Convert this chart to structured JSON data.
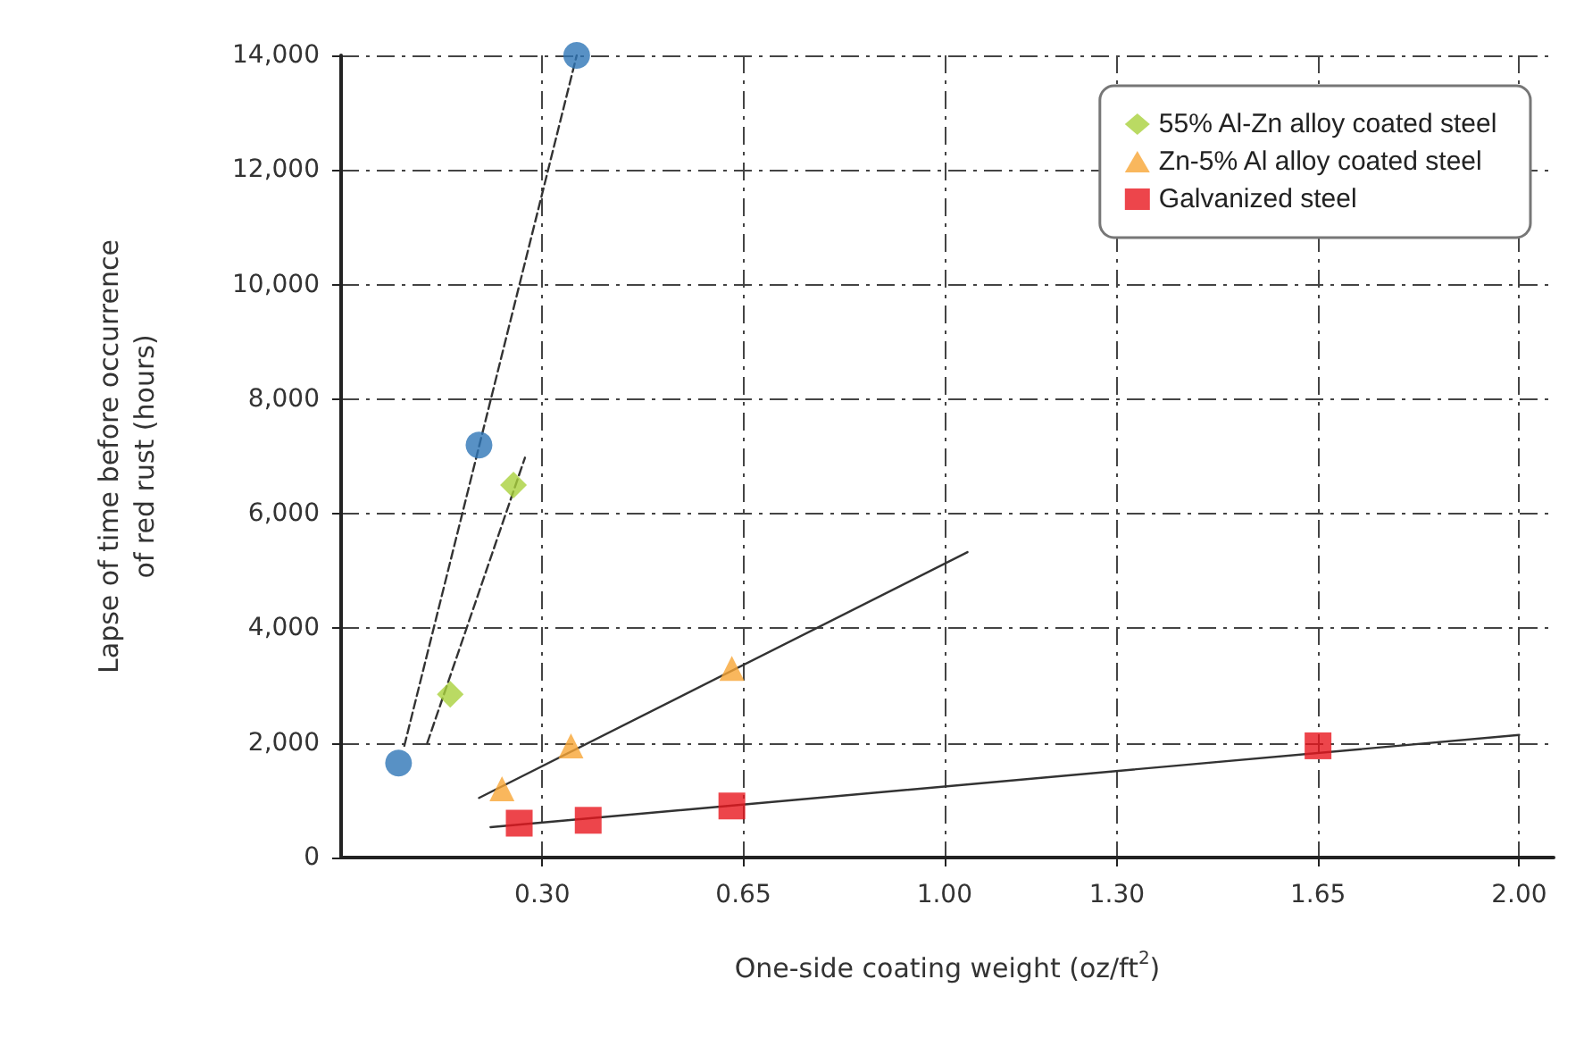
{
  "chart_data": {
    "type": "scatter",
    "xlabel": "One-side coating weight (oz/ft$^{2}$)",
    "ylabel": "Lapse of time before occurrence\nof red rust (hours)",
    "xlim": [
      -0.05,
      2.06
    ],
    "xticks": [
      {
        "value": 0.3,
        "label": "0.30"
      },
      0.65,
      {
        "value": 1.0,
        "label": "1.00"
      },
      {
        "value": 1.3,
        "label": "1.30"
      },
      1.65,
      {
        "value": 2.0,
        "label": "2.00"
      }
    ],
    "ylim": [
      0,
      14000
    ],
    "yticks": [
      0,
      {
        "value": 2000,
        "label": "2,000"
      },
      {
        "value": 4000,
        "label": "4,000"
      },
      {
        "value": 6000,
        "label": "6,000"
      },
      {
        "value": 8000,
        "label": "8,000"
      },
      {
        "value": 10000,
        "label": "10,000"
      },
      {
        "value": 12000,
        "label": "12,000"
      },
      {
        "value": 14000,
        "label": "14,000"
      }
    ],
    "grid": true,
    "legend": "top right",
    "series": [
      {
        "type": "line",
        "color": "#333333",
        "line_style": "dashed",
        "marker": "none",
        "x": [
          0.06,
          0.36
        ],
        "values": [
          1950,
          14000
        ]
      },
      {
        "type": "line",
        "color": "#333333",
        "line_style": "dashed",
        "marker": "none",
        "x": [
          0.1,
          0.27
        ],
        "values": [
          2000,
          6980
        ]
      },
      {
        "type": "line",
        "color": "#333333",
        "line_style": "solid",
        "marker": "none",
        "x": [
          0.19,
          1.04
        ],
        "values": [
          1040,
          5330
        ]
      },
      {
        "type": "line",
        "color": "#333333",
        "line_style": "solid",
        "marker": "none",
        "x": [
          0.21,
          2.0
        ],
        "values": [
          530,
          2140
        ]
      },
      {
        "color": "#2e75b6",
        "marker": "circle",
        "x": [
          0.05,
          0.19,
          0.36
        ],
        "values": [
          1650,
          7200,
          14000
        ]
      },
      {
        "name": "55% Al-Zn alloy coated steel",
        "color": "#a9d13c",
        "marker": "diamond",
        "x": [
          0.14,
          0.25
        ],
        "values": [
          2850,
          6500
        ]
      },
      {
        "name": "Zn-5% Al alloy coated steel",
        "color": "#f7a535",
        "marker": "triangle",
        "x": [
          0.23,
          0.35,
          0.63
        ],
        "values": [
          1200,
          1950,
          3300
        ]
      },
      {
        "name": "Galvanized steel",
        "color": "#e8161e",
        "marker": "square",
        "x": [
          0.26,
          0.38,
          0.63,
          1.65
        ],
        "values": [
          600,
          650,
          900,
          1950
        ]
      }
    ]
  }
}
